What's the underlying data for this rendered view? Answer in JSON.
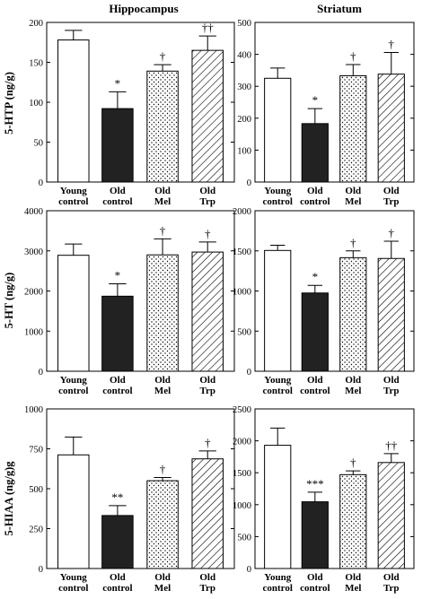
{
  "colors": {
    "background": "#ffffff",
    "ink": "#000000",
    "bar_young": "#ffffff",
    "bar_old": "#222222",
    "bar_mel_pattern": "dots",
    "bar_trp_pattern": "diagonal-hatch"
  },
  "column_titles": [
    "Hippocampus",
    "Striatum"
  ],
  "row_labels": [
    "5-HTP (ng/g)",
    "5-HT (ng/g)",
    "5-HIAA (ng/g)g"
  ],
  "chart_data": [
    {
      "type": "bar",
      "region": "Hippocampus",
      "ylabel": "5-HTP (ng/g)",
      "categories": [
        [
          "Young",
          "control"
        ],
        [
          "Old",
          "control"
        ],
        [
          "Old",
          "Mel"
        ],
        [
          "Old",
          "Trp"
        ]
      ],
      "values": [
        178,
        92,
        139,
        165
      ],
      "errors": [
        12,
        21,
        8,
        18
      ],
      "annotations": [
        "",
        "*",
        "†",
        "††"
      ],
      "ylim": [
        0,
        200
      ],
      "yticks": [
        0,
        50,
        100,
        150,
        200
      ]
    },
    {
      "type": "bar",
      "region": "Striatum",
      "ylabel": "",
      "categories": [
        [
          "Young",
          "control"
        ],
        [
          "Old",
          "control"
        ],
        [
          "Old",
          "Mel"
        ],
        [
          "Old",
          "Trp"
        ]
      ],
      "values": [
        325,
        183,
        333,
        338
      ],
      "errors": [
        32,
        47,
        35,
        68
      ],
      "annotations": [
        "",
        "*",
        "†",
        "†"
      ],
      "ylim": [
        0,
        500
      ],
      "yticks": [
        0,
        100,
        200,
        300,
        400,
        500
      ]
    },
    {
      "type": "bar",
      "region": "Hippocampus",
      "ylabel": "5-HT (ng/g)",
      "categories": [
        [
          "Young",
          "control"
        ],
        [
          "Old",
          "control"
        ],
        [
          "Old",
          "Mel"
        ],
        [
          "Old",
          "Trp"
        ]
      ],
      "values": [
        2890,
        1870,
        2900,
        2970
      ],
      "errors": [
        280,
        310,
        400,
        250
      ],
      "annotations": [
        "",
        "*",
        "†",
        "†"
      ],
      "ylim": [
        0,
        4000
      ],
      "yticks": [
        0,
        1000,
        2000,
        3000,
        4000
      ]
    },
    {
      "type": "bar",
      "region": "Striatum",
      "ylabel": "",
      "categories": [
        [
          "Young",
          "control"
        ],
        [
          "Old",
          "control"
        ],
        [
          "Old",
          "Mel"
        ],
        [
          "Old",
          "Trp"
        ]
      ],
      "values": [
        1505,
        975,
        1415,
        1405
      ],
      "errors": [
        65,
        95,
        85,
        215
      ],
      "annotations": [
        "",
        "*",
        "†",
        "†"
      ],
      "ylim": [
        0,
        2000
      ],
      "yticks": [
        0,
        500,
        1000,
        1500,
        2000
      ]
    },
    {
      "type": "bar",
      "region": "Hippocampus",
      "ylabel": "5-HIAA (ng/g)g",
      "categories": [
        [
          "Young",
          "control"
        ],
        [
          "Old",
          "control"
        ],
        [
          "Old",
          "Mel"
        ],
        [
          "Old",
          "Trp"
        ]
      ],
      "values": [
        712,
        332,
        550,
        687
      ],
      "errors": [
        112,
        62,
        20,
        50
      ],
      "annotations": [
        "",
        "**",
        "†",
        "†"
      ],
      "ylim": [
        0,
        1000
      ],
      "yticks": [
        0,
        250,
        500,
        750,
        1000
      ]
    },
    {
      "type": "bar",
      "region": "Striatum",
      "ylabel": "",
      "categories": [
        [
          "Young",
          "control"
        ],
        [
          "Old",
          "control"
        ],
        [
          "Old",
          "Mel"
        ],
        [
          "Old",
          "Trp"
        ]
      ],
      "values": [
        1930,
        1045,
        1470,
        1660
      ],
      "errors": [
        270,
        150,
        60,
        140
      ],
      "annotations": [
        "",
        "***",
        "†",
        "††"
      ],
      "ylim": [
        0,
        2500
      ],
      "yticks": [
        0,
        500,
        1000,
        1500,
        2000,
        2500
      ]
    }
  ]
}
